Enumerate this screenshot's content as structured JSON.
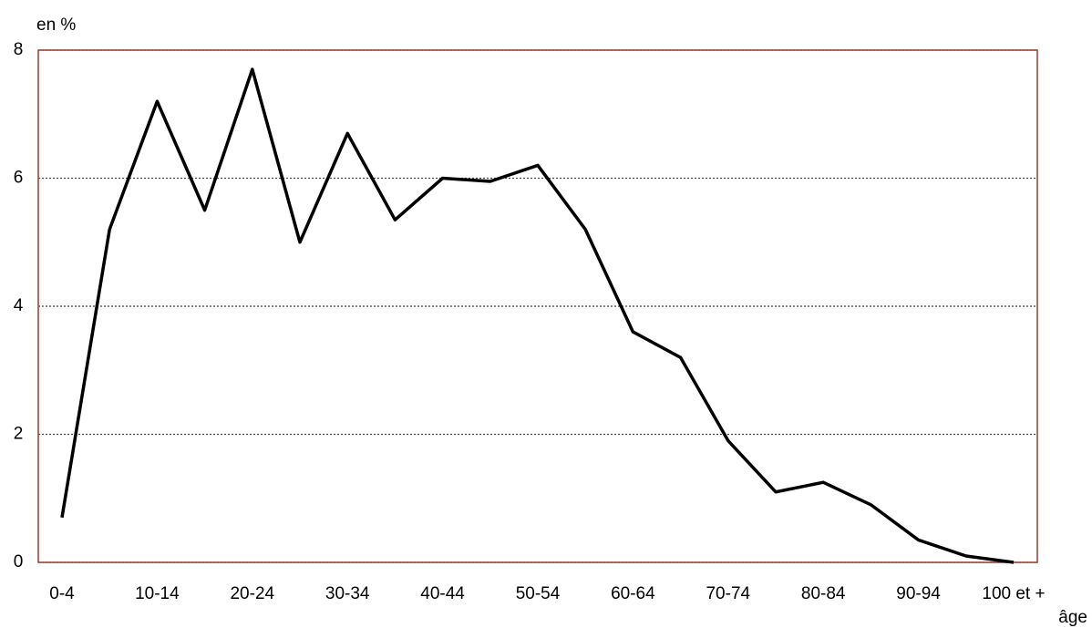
{
  "chart_data": {
    "type": "line",
    "y_label": "en %",
    "x_label": "âge",
    "categories": [
      "0-4",
      null,
      "10-14",
      null,
      "20-24",
      null,
      "30-34",
      null,
      "40-44",
      null,
      "50-54",
      null,
      "60-64",
      null,
      "70-74",
      null,
      "80-84",
      null,
      "90-94",
      null,
      "100 et +"
    ],
    "series": [
      {
        "name": null,
        "color": "#000000",
        "values": [
          0.7,
          5.2,
          7.2,
          5.5,
          7.7,
          5.0,
          6.7,
          5.35,
          6.0,
          5.95,
          6.2,
          5.2,
          3.6,
          3.2,
          1.9,
          1.1,
          1.25,
          0.9,
          0.35,
          0.1,
          0
        ]
      }
    ],
    "ylim": [
      0,
      8
    ],
    "yticks": [
      0,
      2,
      4,
      6,
      8
    ],
    "grid": true,
    "frame_color": "#9b3b2a"
  }
}
